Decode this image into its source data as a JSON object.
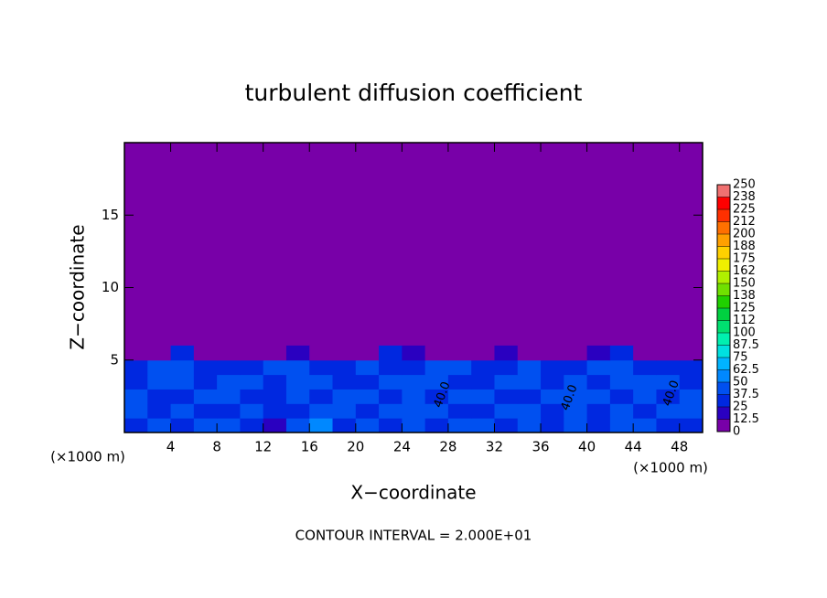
{
  "chart_data": {
    "type": "contour",
    "title": "turbulent diffusion coefficient",
    "x_label": "X−coordinate",
    "y_label": "Z−coordinate",
    "x_unit": "(×1000 m)",
    "y_unit": "(×1000 m)",
    "note": "CONTOUR INTERVAL = 2.000E+01",
    "xlim": [
      0,
      50
    ],
    "ylim": [
      0,
      20
    ],
    "xticks": [
      4,
      8,
      12,
      16,
      20,
      24,
      28,
      32,
      36,
      40,
      44,
      48
    ],
    "yticks": [
      5,
      10,
      15
    ],
    "background_color": "#7800a8",
    "levels": [
      0,
      12.5,
      25,
      37.5,
      50,
      62.5,
      75,
      87.5,
      100,
      112,
      125,
      138,
      150,
      162,
      175,
      188,
      200,
      212,
      225,
      238,
      250
    ],
    "colors": [
      "#7800a8",
      "#2a00c0",
      "#0028e0",
      "#0050f0",
      "#0088ff",
      "#00b4ff",
      "#00e0e0",
      "#00f0b0",
      "#00e070",
      "#00d040",
      "#20d000",
      "#70e000",
      "#b0f000",
      "#f0f000",
      "#ffd000",
      "#ffa000",
      "#ff7000",
      "#ff3000",
      "#ff0000",
      "#f07070"
    ],
    "field": {
      "x": [
        1,
        3,
        5,
        7,
        9,
        11,
        13,
        15,
        17,
        19,
        21,
        23,
        25,
        27,
        29,
        31,
        33,
        35,
        37,
        39,
        41,
        43,
        45,
        47,
        49
      ],
      "z": [
        0.5,
        1.5,
        2.5,
        3.5,
        4.5,
        5.5
      ],
      "values": [
        [
          35,
          40,
          30,
          45,
          38,
          30,
          20,
          42,
          50,
          30,
          40,
          35,
          45,
          30,
          38,
          42,
          30,
          40,
          35,
          45,
          32,
          38,
          40,
          30,
          35
        ],
        [
          38,
          32,
          40,
          35,
          30,
          42,
          28,
          36,
          40,
          45,
          32,
          38,
          40,
          42,
          30,
          36,
          44,
          38,
          30,
          40,
          36,
          42,
          30,
          38,
          40
        ],
        [
          40,
          36,
          30,
          42,
          38,
          35,
          30,
          40,
          36,
          38,
          44,
          30,
          40,
          36,
          42,
          38,
          30,
          35,
          40,
          44,
          38,
          30,
          42,
          36,
          40
        ],
        [
          36,
          42,
          38,
          30,
          40,
          44,
          32,
          38,
          42,
          36,
          30,
          40,
          38,
          44,
          36,
          30,
          42,
          38,
          36,
          40,
          34,
          42,
          38,
          44,
          30
        ],
        [
          30,
          38,
          40,
          36,
          28,
          32,
          38,
          40,
          30,
          36,
          40,
          34,
          30,
          38,
          40,
          30,
          36,
          38,
          32,
          30,
          38,
          40,
          36,
          30,
          28
        ],
        [
          0,
          12,
          25,
          12,
          0,
          0,
          12,
          20,
          12,
          0,
          12,
          25,
          20,
          0,
          0,
          12,
          20,
          12,
          0,
          12,
          20,
          25,
          12,
          0,
          0
        ]
      ]
    },
    "annotations": [
      {
        "text": "40.0",
        "x": 27.5,
        "z": 2.6
      },
      {
        "text": "40.0",
        "x": 38.5,
        "z": 2.4
      },
      {
        "text": "40.0",
        "x": 47.3,
        "z": 2.7
      }
    ]
  }
}
